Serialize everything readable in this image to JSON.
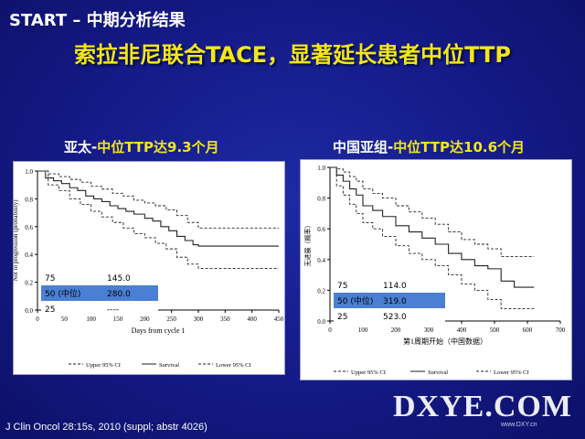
{
  "header": "START – 中期分析结果",
  "title": "索拉非尼联合TACE，显著延长患者中位TTP",
  "citation": "J Clin Oncol 28:15s, 2010 (suppl; abstr 4026)",
  "watermark": {
    "main": "DXYE.COM",
    "sub": "www.DXY.cn"
  },
  "colors": {
    "background": "#141a86",
    "title": "#f4e619",
    "header": "#ffffff",
    "highlight": "#4a7fd4"
  },
  "chart_data": [
    {
      "type": "line",
      "title_prefix": "亚太-",
      "title_suffix": "中位TTP达9.3个月",
      "xlabel": "Days from cycle 1",
      "ylabel": "Not to progression (probability)",
      "xlim": [
        0,
        450
      ],
      "ylim": [
        0,
        1
      ],
      "xticks": [
        "0",
        "50",
        "100",
        "150",
        "200",
        "250",
        "300",
        "350",
        "400",
        "450"
      ],
      "yticks": [
        "0.0",
        "0.2",
        "0.4",
        "0.6",
        "0.8",
        "1.0"
      ],
      "table": [
        {
          "pct": "75",
          "value": "145.0",
          "highlight": false
        },
        {
          "pct": "50 (中位)",
          "value": "280.0",
          "highlight": true
        },
        {
          "pct": "25",
          "value": "----",
          "highlight": false
        }
      ],
      "legend": [
        "Upper 95% CI",
        "Survival",
        "Lower 95% CI"
      ],
      "series": [
        {
          "name": "Survival",
          "style": "solid",
          "x": [
            0,
            15,
            30,
            45,
            60,
            75,
            90,
            105,
            120,
            135,
            150,
            165,
            180,
            200,
            215,
            230,
            245,
            260,
            275,
            290,
            300,
            450
          ],
          "y": [
            1.0,
            0.95,
            0.93,
            0.91,
            0.88,
            0.86,
            0.82,
            0.8,
            0.78,
            0.75,
            0.73,
            0.71,
            0.69,
            0.66,
            0.64,
            0.6,
            0.57,
            0.53,
            0.5,
            0.47,
            0.46,
            0.46
          ]
        },
        {
          "name": "Upper 95% CI",
          "style": "dashed",
          "x": [
            0,
            20,
            40,
            60,
            80,
            100,
            120,
            140,
            160,
            180,
            200,
            220,
            240,
            260,
            280,
            300,
            450
          ],
          "y": [
            1.0,
            0.98,
            0.96,
            0.94,
            0.92,
            0.89,
            0.87,
            0.84,
            0.82,
            0.79,
            0.77,
            0.75,
            0.72,
            0.68,
            0.63,
            0.59,
            0.59
          ]
        },
        {
          "name": "Lower 95% CI",
          "style": "dashed",
          "x": [
            0,
            20,
            40,
            60,
            80,
            100,
            120,
            140,
            160,
            180,
            200,
            220,
            240,
            260,
            280,
            300,
            450
          ],
          "y": [
            1.0,
            0.9,
            0.86,
            0.8,
            0.76,
            0.71,
            0.67,
            0.63,
            0.59,
            0.55,
            0.52,
            0.48,
            0.44,
            0.38,
            0.33,
            0.3,
            0.3
          ]
        }
      ]
    },
    {
      "type": "line",
      "title_prefix": "中国亚组-",
      "title_suffix": "中位TTP达10.6个月",
      "xlabel": "第1周期开始（中国数据）",
      "ylabel": "无进展（概率）",
      "xlim": [
        0,
        700
      ],
      "ylim": [
        0,
        1
      ],
      "xticks": [
        "0",
        "100",
        "200",
        "300",
        "400",
        "500",
        "600",
        "700"
      ],
      "yticks": [
        "0.0",
        "0.2",
        "0.4",
        "0.6",
        "0.8",
        "1.0"
      ],
      "table": [
        {
          "pct": "75",
          "value": "114.0",
          "highlight": false
        },
        {
          "pct": "50 (中位)",
          "value": "319.0",
          "highlight": true
        },
        {
          "pct": "25",
          "value": "523.0",
          "highlight": false
        }
      ],
      "legend": [
        "Upper 95% CI",
        "Survival",
        "Lower 95% CI"
      ],
      "series": [
        {
          "name": "Survival",
          "style": "solid",
          "x": [
            0,
            20,
            40,
            60,
            80,
            100,
            130,
            160,
            200,
            240,
            280,
            320,
            360,
            400,
            440,
            480,
            520,
            560,
            600,
            620
          ],
          "y": [
            1.0,
            0.95,
            0.91,
            0.86,
            0.82,
            0.75,
            0.72,
            0.68,
            0.62,
            0.58,
            0.54,
            0.5,
            0.44,
            0.4,
            0.36,
            0.34,
            0.26,
            0.22,
            0.22,
            0.22
          ]
        },
        {
          "name": "Upper 95% CI",
          "style": "dashed",
          "x": [
            0,
            20,
            40,
            60,
            80,
            100,
            130,
            160,
            200,
            240,
            280,
            320,
            360,
            400,
            440,
            480,
            520,
            560,
            620
          ],
          "y": [
            1.0,
            0.99,
            0.97,
            0.94,
            0.91,
            0.86,
            0.83,
            0.8,
            0.75,
            0.71,
            0.67,
            0.63,
            0.58,
            0.53,
            0.5,
            0.47,
            0.42,
            0.42,
            0.42
          ]
        },
        {
          "name": "Lower 95% CI",
          "style": "dashed",
          "x": [
            0,
            20,
            40,
            60,
            80,
            100,
            130,
            160,
            200,
            240,
            280,
            320,
            360,
            400,
            440,
            480,
            520,
            560,
            620
          ],
          "y": [
            1.0,
            0.88,
            0.82,
            0.76,
            0.7,
            0.64,
            0.6,
            0.55,
            0.49,
            0.44,
            0.4,
            0.36,
            0.3,
            0.24,
            0.2,
            0.14,
            0.08,
            0.08,
            0.08
          ]
        }
      ]
    }
  ]
}
